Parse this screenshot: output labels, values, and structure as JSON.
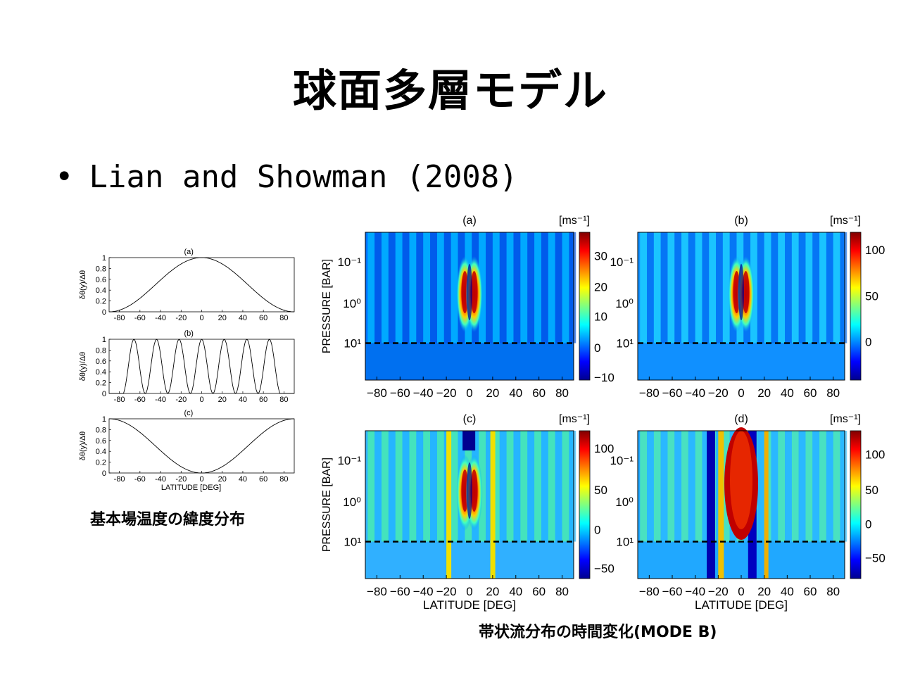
{
  "slide": {
    "title": "球面多層モデル",
    "bullet": "Lian and Showman (2008)",
    "caption_left": "基本場温度の緯度分布",
    "caption_right": "帯状流分布の時間変化(MODE B)"
  },
  "chart_data": [
    {
      "type": "line",
      "panel": "(a)",
      "ylabel": "δθ(y)/Δθ",
      "x_ticks": [
        -80,
        -60,
        -40,
        -20,
        0,
        20,
        40,
        60,
        80
      ],
      "y_ticks": [
        0,
        0.2,
        0.4,
        0.6,
        0.8,
        1
      ],
      "xlim": [
        -90,
        90
      ],
      "ylim": [
        0,
        1
      ],
      "x": [
        -90,
        -60,
        -30,
        0,
        30,
        60,
        90
      ],
      "y": [
        0.0,
        0.25,
        0.75,
        1.0,
        0.75,
        0.25,
        0.0
      ]
    },
    {
      "type": "line",
      "panel": "(b)",
      "ylabel": "δθ(y)/Δθ",
      "x_ticks": [
        -80,
        -60,
        -40,
        -20,
        0,
        20,
        40,
        60,
        80
      ],
      "y_ticks": [
        0,
        0.2,
        0.4,
        0.6,
        0.8,
        1
      ],
      "xlim": [
        -90,
        90
      ],
      "ylim": [
        0,
        1
      ],
      "peaks_x": [
        -65,
        -43,
        -22,
        0,
        22,
        43,
        65
      ]
    },
    {
      "type": "line",
      "panel": "(c)",
      "ylabel": "δθ(y)/Δθ",
      "xlabel": "LATITUDE [DEG]",
      "x_ticks": [
        -80,
        -60,
        -40,
        -20,
        0,
        20,
        40,
        60,
        80
      ],
      "y_ticks": [
        0,
        0.2,
        0.4,
        0.6,
        0.8,
        1
      ],
      "xlim": [
        -90,
        90
      ],
      "ylim": [
        0,
        1
      ],
      "x": [
        -90,
        -60,
        -30,
        0,
        30,
        60,
        90
      ],
      "y": [
        1.0,
        0.75,
        0.25,
        0.0,
        0.25,
        0.75,
        1.0
      ]
    },
    {
      "type": "heatmap",
      "panel": "(a)",
      "unit": "[ms⁻¹]",
      "ylabel": "PRESSURE [BAR]",
      "y_ticks": [
        "10⁻¹",
        "10⁰",
        "10¹"
      ],
      "x_ticks": [
        -80,
        -60,
        -40,
        -20,
        0,
        20,
        40,
        60,
        80
      ],
      "colorbar_ticks": [
        30,
        20,
        10,
        0,
        -10
      ],
      "dashed_line_at": "10¹"
    },
    {
      "type": "heatmap",
      "panel": "(b)",
      "unit": "[ms⁻¹]",
      "y_ticks": [
        "10⁻¹",
        "10⁰",
        "10¹"
      ],
      "x_ticks": [
        -80,
        -60,
        -40,
        -20,
        0,
        20,
        40,
        60,
        80
      ],
      "colorbar_ticks": [
        100,
        50,
        0
      ],
      "dashed_line_at": "10¹"
    },
    {
      "type": "heatmap",
      "panel": "(c)",
      "unit": "[ms⁻¹]",
      "ylabel": "PRESSURE [BAR]",
      "xlabel": "LATITUDE [DEG]",
      "y_ticks": [
        "10⁻¹",
        "10⁰",
        "10¹"
      ],
      "x_ticks": [
        -80,
        -60,
        -40,
        -20,
        0,
        20,
        40,
        60,
        80
      ],
      "colorbar_ticks": [
        100,
        50,
        0,
        -50
      ],
      "dashed_line_at": "10¹"
    },
    {
      "type": "heatmap",
      "panel": "(d)",
      "unit": "[ms⁻¹]",
      "xlabel": "LATITUDE [DEG]",
      "y_ticks": [
        "10⁻¹",
        "10⁰",
        "10¹"
      ],
      "x_ticks": [
        -80,
        -60,
        -40,
        -20,
        0,
        20,
        40,
        60,
        80
      ],
      "colorbar_ticks": [
        100,
        50,
        0,
        -50
      ],
      "dashed_line_at": "10¹"
    }
  ]
}
